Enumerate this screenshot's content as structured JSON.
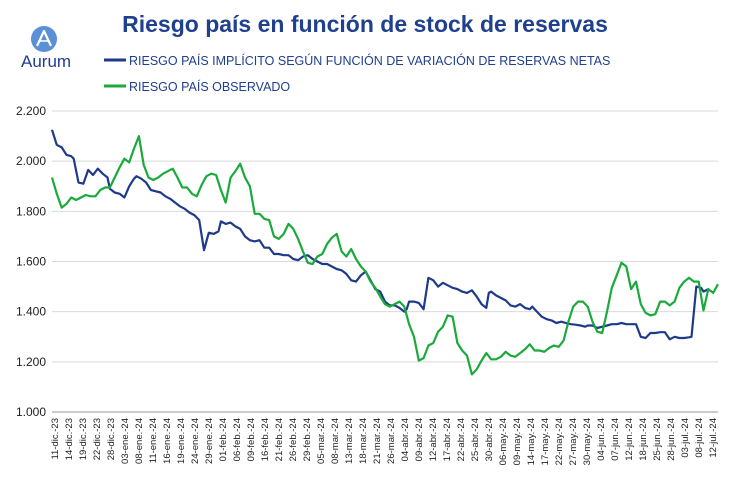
{
  "brand": {
    "name": "Aurum"
  },
  "chart_data": {
    "type": "line",
    "title": "Riesgo país en función de stock de reservas",
    "xlabel": "",
    "ylabel": "",
    "ylim": [
      1000,
      2200
    ],
    "yticks": [
      "1.000",
      "1.200",
      "1.400",
      "1.600",
      "1.800",
      "2.000",
      "2.200"
    ],
    "ytick_values": [
      1000,
      1200,
      1400,
      1600,
      1800,
      2000,
      2200
    ],
    "grid": true,
    "legend_position": "top-left",
    "x_tick_labels": [
      "11-dic.-23",
      "14-dic.-23",
      "19-dic.-23",
      "22-dic.-23",
      "28-dic.-23",
      "03-ene.-24",
      "08-ene.-24",
      "11-ene.-24",
      "16-ene.-24",
      "19-ene.-24",
      "24-ene.-24",
      "29-ene.-24",
      "01-feb.-24",
      "06-feb.-24",
      "09-feb.-24",
      "16-feb.-24",
      "21-feb.-24",
      "26-feb.-24",
      "29-feb.-24",
      "05-mar.-24",
      "08-mar.-24",
      "13-mar.-24",
      "18-mar.-24",
      "21-mar.-24",
      "26-mar.-24",
      "04-abr.-24",
      "09-abr.-24",
      "12-abr.-24",
      "17-abr.-24",
      "22-abr.-24",
      "25-abr.-24",
      "30-abr.-24",
      "06-may.-24",
      "09-may.-24",
      "14-may.-24",
      "17-may.-24",
      "22-may.-24",
      "27-may.-24",
      "30-may.-24",
      "04-jun.-24",
      "07-jun.-24",
      "12-jun.-24",
      "18-jun.-24",
      "25-jun.-24",
      "28-jun.-24",
      "03-jul.-24",
      "08-jul.-24",
      "12-jul.-24"
    ],
    "n_points": 144,
    "series": [
      {
        "name": "RIESGO PAÍS IMPLÍCITO SEGÚN FUNCIÓN DE VARIACIÓN DE RESERVAS NETAS",
        "color": "#1f3a8a",
        "points": [
          [
            0,
            2125
          ],
          [
            2,
            2065
          ],
          [
            4,
            2055
          ],
          [
            6,
            2025
          ],
          [
            8,
            2020
          ],
          [
            9,
            2010
          ],
          [
            11,
            1915
          ],
          [
            13,
            1910
          ],
          [
            15,
            1965
          ],
          [
            17,
            1945
          ],
          [
            19,
            1970
          ],
          [
            21,
            1950
          ],
          [
            23,
            1935
          ],
          [
            24,
            1890
          ],
          [
            26,
            1875
          ],
          [
            28,
            1870
          ],
          [
            30,
            1855
          ],
          [
            32,
            1900
          ],
          [
            34,
            1930
          ],
          [
            35,
            1940
          ],
          [
            37,
            1930
          ],
          [
            39,
            1915
          ],
          [
            41,
            1885
          ],
          [
            43,
            1880
          ],
          [
            45,
            1875
          ],
          [
            47,
            1860
          ],
          [
            49,
            1850
          ],
          [
            51,
            1835
          ],
          [
            53,
            1820
          ],
          [
            55,
            1810
          ],
          [
            57,
            1795
          ],
          [
            59,
            1785
          ],
          [
            61,
            1765
          ],
          [
            63,
            1645
          ],
          [
            65,
            1715
          ],
          [
            67,
            1710
          ],
          [
            69,
            1720
          ],
          [
            70,
            1760
          ],
          [
            72,
            1750
          ],
          [
            74,
            1755
          ],
          [
            76,
            1740
          ],
          [
            78,
            1730
          ],
          [
            80,
            1700
          ],
          [
            82,
            1685
          ],
          [
            84,
            1680
          ],
          [
            86,
            1685
          ],
          [
            88,
            1655
          ],
          [
            90,
            1655
          ],
          [
            92,
            1630
          ],
          [
            94,
            1630
          ],
          [
            96,
            1625
          ],
          [
            98,
            1625
          ],
          [
            100,
            1610
          ],
          [
            102,
            1605
          ],
          [
            104,
            1620
          ],
          [
            106,
            1625
          ],
          [
            108,
            1610
          ],
          [
            110,
            1600
          ],
          [
            112,
            1590
          ],
          [
            114,
            1590
          ],
          [
            116,
            1580
          ],
          [
            118,
            1570
          ],
          [
            120,
            1565
          ],
          [
            122,
            1550
          ],
          [
            124,
            1525
          ],
          [
            126,
            1520
          ],
          [
            128,
            1545
          ],
          [
            130,
            1560
          ],
          [
            132,
            1525
          ],
          [
            134,
            1490
          ],
          [
            136,
            1480
          ],
          [
            138,
            1440
          ],
          [
            140,
            1425
          ],
          [
            142,
            1425
          ],
          [
            144,
            1415
          ],
          [
            146,
            1400
          ],
          [
            147,
            1410
          ],
          [
            148,
            1440
          ],
          [
            150,
            1440
          ],
          [
            152,
            1435
          ],
          [
            154,
            1410
          ],
          [
            156,
            1535
          ],
          [
            158,
            1525
          ],
          [
            160,
            1500
          ],
          [
            162,
            1515
          ],
          [
            164,
            1505
          ],
          [
            166,
            1495
          ],
          [
            168,
            1490
          ],
          [
            170,
            1480
          ],
          [
            172,
            1475
          ],
          [
            174,
            1485
          ],
          [
            176,
            1460
          ],
          [
            178,
            1430
          ],
          [
            180,
            1415
          ],
          [
            181,
            1475
          ],
          [
            182,
            1480
          ],
          [
            184,
            1465
          ],
          [
            186,
            1455
          ],
          [
            188,
            1445
          ],
          [
            190,
            1425
          ],
          [
            192,
            1420
          ],
          [
            194,
            1430
          ],
          [
            196,
            1415
          ],
          [
            198,
            1410
          ],
          [
            199,
            1420
          ],
          [
            201,
            1400
          ],
          [
            203,
            1380
          ],
          [
            205,
            1370
          ],
          [
            207,
            1365
          ],
          [
            209,
            1355
          ],
          [
            211,
            1360
          ],
          [
            213,
            1355
          ],
          [
            215,
            1350
          ],
          [
            217,
            1348
          ],
          [
            219,
            1345
          ],
          [
            221,
            1340
          ],
          [
            222,
            1345
          ],
          [
            224,
            1345
          ],
          [
            226,
            1335
          ],
          [
            228,
            1340
          ],
          [
            230,
            1345
          ],
          [
            232,
            1350
          ],
          [
            234,
            1350
          ],
          [
            236,
            1355
          ],
          [
            238,
            1350
          ],
          [
            240,
            1350
          ],
          [
            242,
            1350
          ],
          [
            244,
            1300
          ],
          [
            246,
            1295
          ],
          [
            248,
            1315
          ],
          [
            250,
            1315
          ],
          [
            252,
            1318
          ],
          [
            254,
            1318
          ],
          [
            256,
            1290
          ],
          [
            258,
            1300
          ],
          [
            260,
            1295
          ],
          [
            262,
            1295
          ],
          [
            264,
            1298
          ],
          [
            265,
            1300
          ],
          [
            267,
            1500
          ],
          [
            269,
            1495
          ],
          [
            270,
            1480
          ],
          [
            272,
            1490
          ]
        ]
      },
      {
        "name": "RIESGO PAÍS OBSERVADO",
        "color": "#1aaa3c",
        "points": [
          [
            0,
            1935
          ],
          [
            2,
            1870
          ],
          [
            4,
            1815
          ],
          [
            6,
            1830
          ],
          [
            8,
            1855
          ],
          [
            10,
            1845
          ],
          [
            12,
            1855
          ],
          [
            14,
            1865
          ],
          [
            16,
            1860
          ],
          [
            18,
            1860
          ],
          [
            20,
            1885
          ],
          [
            22,
            1895
          ],
          [
            24,
            1895
          ],
          [
            26,
            1935
          ],
          [
            28,
            1975
          ],
          [
            30,
            2010
          ],
          [
            32,
            1995
          ],
          [
            34,
            2050
          ],
          [
            36,
            2100
          ],
          [
            38,
            1985
          ],
          [
            40,
            1935
          ],
          [
            42,
            1925
          ],
          [
            44,
            1935
          ],
          [
            46,
            1950
          ],
          [
            48,
            1960
          ],
          [
            50,
            1970
          ],
          [
            52,
            1935
          ],
          [
            54,
            1895
          ],
          [
            56,
            1895
          ],
          [
            58,
            1870
          ],
          [
            60,
            1860
          ],
          [
            62,
            1905
          ],
          [
            64,
            1940
          ],
          [
            66,
            1950
          ],
          [
            68,
            1945
          ],
          [
            70,
            1885
          ],
          [
            72,
            1835
          ],
          [
            74,
            1935
          ],
          [
            76,
            1960
          ],
          [
            78,
            1990
          ],
          [
            80,
            1935
          ],
          [
            82,
            1900
          ],
          [
            84,
            1790
          ],
          [
            86,
            1790
          ],
          [
            88,
            1770
          ],
          [
            90,
            1765
          ],
          [
            92,
            1700
          ],
          [
            94,
            1690
          ],
          [
            96,
            1710
          ],
          [
            98,
            1750
          ],
          [
            100,
            1730
          ],
          [
            102,
            1690
          ],
          [
            104,
            1640
          ],
          [
            106,
            1595
          ],
          [
            108,
            1590
          ],
          [
            110,
            1620
          ],
          [
            112,
            1630
          ],
          [
            114,
            1670
          ],
          [
            116,
            1695
          ],
          [
            118,
            1710
          ],
          [
            120,
            1640
          ],
          [
            122,
            1620
          ],
          [
            124,
            1650
          ],
          [
            126,
            1610
          ],
          [
            128,
            1580
          ],
          [
            130,
            1560
          ],
          [
            132,
            1520
          ],
          [
            134,
            1495
          ],
          [
            136,
            1460
          ],
          [
            138,
            1430
          ],
          [
            140,
            1420
          ],
          [
            142,
            1430
          ],
          [
            144,
            1440
          ],
          [
            146,
            1420
          ],
          [
            148,
            1350
          ],
          [
            150,
            1300
          ],
          [
            152,
            1205
          ],
          [
            154,
            1215
          ],
          [
            156,
            1265
          ],
          [
            158,
            1275
          ],
          [
            160,
            1320
          ],
          [
            162,
            1340
          ],
          [
            164,
            1385
          ],
          [
            166,
            1380
          ],
          [
            168,
            1275
          ],
          [
            170,
            1245
          ],
          [
            172,
            1225
          ],
          [
            174,
            1150
          ],
          [
            176,
            1170
          ],
          [
            178,
            1205
          ],
          [
            180,
            1235
          ],
          [
            182,
            1210
          ],
          [
            184,
            1210
          ],
          [
            186,
            1220
          ],
          [
            188,
            1240
          ],
          [
            190,
            1225
          ],
          [
            192,
            1220
          ],
          [
            194,
            1235
          ],
          [
            196,
            1250
          ],
          [
            198,
            1270
          ],
          [
            200,
            1245
          ],
          [
            202,
            1245
          ],
          [
            204,
            1240
          ],
          [
            206,
            1255
          ],
          [
            208,
            1265
          ],
          [
            210,
            1260
          ],
          [
            212,
            1285
          ],
          [
            214,
            1360
          ],
          [
            216,
            1420
          ],
          [
            218,
            1440
          ],
          [
            220,
            1440
          ],
          [
            222,
            1420
          ],
          [
            224,
            1360
          ],
          [
            226,
            1320
          ],
          [
            228,
            1315
          ],
          [
            230,
            1400
          ],
          [
            232,
            1495
          ],
          [
            234,
            1545
          ],
          [
            236,
            1595
          ],
          [
            238,
            1580
          ],
          [
            240,
            1490
          ],
          [
            242,
            1520
          ],
          [
            244,
            1430
          ],
          [
            246,
            1395
          ],
          [
            248,
            1385
          ],
          [
            250,
            1390
          ],
          [
            252,
            1440
          ],
          [
            254,
            1440
          ],
          [
            256,
            1425
          ],
          [
            258,
            1440
          ],
          [
            260,
            1495
          ],
          [
            262,
            1520
          ],
          [
            264,
            1535
          ],
          [
            266,
            1520
          ],
          [
            268,
            1520
          ],
          [
            270,
            1405
          ],
          [
            272,
            1490
          ],
          [
            274,
            1475
          ],
          [
            276,
            1510
          ]
        ]
      }
    ]
  }
}
